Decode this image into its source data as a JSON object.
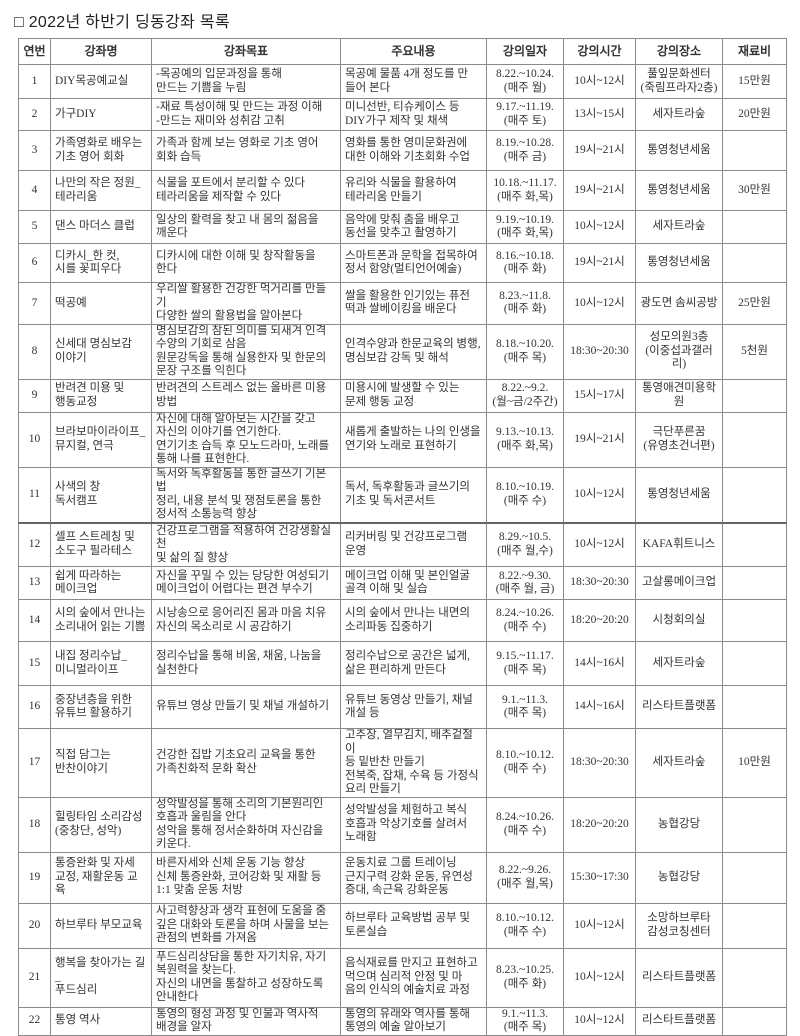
{
  "title": "□ 2022년 하반기 딩동강좌 목록",
  "headers": [
    "연번",
    "강좌명",
    "강좌목표",
    "주요내용",
    "강의일자",
    "강의시간",
    "강의장소",
    "재료비"
  ],
  "rows": [
    {
      "no": "1",
      "name": "DIY목공예교실",
      "goal": "-목공예의 입문과정을 통해\n 만드는 기쁨을 누림",
      "content": "목공예 물품 4개 정도를 만\n들어 본다",
      "date": "8.22.~10.24.\n(매주 월)",
      "time": "10시~12시",
      "place": "풀잎문화센터\n(죽림프라자2층)",
      "fee": "15만원"
    },
    {
      "no": "2",
      "name": "가구DIY",
      "goal": "-재료 특성이해 및 만드는 과정 이해\n-만드는 재미와 성취감 고취",
      "content": "미니선반, 티슈케이스 등\nDIY가구 제작 및 채색",
      "date": "9.17.~11.19.\n(매주 토)",
      "time": "13시~15시",
      "place": "세자트라숲",
      "fee": "20만원"
    },
    {
      "no": "3",
      "name": "가족영화로 배우는\n기초 영어 회화",
      "goal": "가족과 함께 보는 영화로 기초 영어\n회화 습득",
      "content": "영화를 통한 영미문화권에\n대한 이해와 기초회화 수업",
      "date": "8.19.~10.28.\n(매주 금)",
      "time": "19시~21시",
      "place": "통영청년세움",
      "fee": ""
    },
    {
      "no": "4",
      "name": "나만의 작은 정원_\n테라리움",
      "goal": "식물을 포트에서 분리할 수 있다\n테라리움을 제작할 수 있다",
      "content": "유리와 식물을 활용하여\n테라리움 만들기",
      "date": "10.18.~11.17.\n(매주 화,목)",
      "time": "19시~21시",
      "place": "통영청년세움",
      "fee": "30만원"
    },
    {
      "no": "5",
      "name": "댄스 마더스 클럽",
      "goal": "일상의 활력을 찾고 내 몸의 젊음을\n깨운다",
      "content": "음악에 맞춰 춤을 배우고\n동선을 맞추고 촬영하기",
      "date": "9.19.~10.19.\n(매주 화,목)",
      "time": "10시~12시",
      "place": "세자트라숲",
      "fee": ""
    },
    {
      "no": "6",
      "name": "디카시_한 컷,\n시를 꽃피우다",
      "goal": "디카시에 대한 이해 및 창작활동을\n한다",
      "content": "스마트폰과 문학을 접목하여\n정서 함양(멀티언어예술)",
      "date": "8.16.~10.18.\n(매주 화)",
      "time": "19시~21시",
      "place": "통영청년세움",
      "fee": ""
    },
    {
      "no": "7",
      "name": "떡공예",
      "goal": "우리쌀 활용한 건강한 먹거리를 만들기\n다양한 쌀의 활용법을 알아본다",
      "content": "쌀을 활용한 인기있는 퓨전\n떡과 쌀베이킹을 배운다",
      "date": "8.23.~11.8.\n(매주 화)",
      "time": "10시~12시",
      "place": "광도면 솜씨공방",
      "fee": "25만원"
    },
    {
      "no": "8",
      "name": "신세대 명심보감\n이야기",
      "goal": "명심보감의 참된 의미를 되새겨 인격\n수양의 기회로 삼음\n원문강독을 통해 실용한자 및 한문의\n문장 구조를 익힌다",
      "content": "인격수양과 한문교육의 병행,\n명심보감 강독 및 해석",
      "date": "8.18.~10.20.\n(매주 목)",
      "time": "18:30~20:30",
      "place": "성모의원3층\n(이중섭과갤러리)",
      "fee": "5천원"
    },
    {
      "no": "9",
      "name": "반려견 미용 및\n행동교정",
      "goal": "반려견의 스트레스 없는 올바른 미용\n방법",
      "content": "미용시에 발생할 수 있는\n문제 행동 교정",
      "date": "8.22.~9.2.\n(월~금/2주간)",
      "time": "15시~17시",
      "place": "통영애견미용학원",
      "fee": ""
    },
    {
      "no": "10",
      "name": "브라보마이라이프_\n뮤지컬, 연극",
      "goal": "자신에 대해 알아보는 시간을 갖고\n자신의 이야기를 연기한다.\n연기기초 습득 후 모노드라마, 노래를\n통해 나를 표현한다.",
      "content": "새롭게 출발하는 나의 인생을\n연기와 노래로 표현하기",
      "date": "9.13.~10.13.\n(매주 화,목)",
      "time": "19시~21시",
      "place": "극단푸른꿈\n(유영초건너편)",
      "fee": ""
    },
    {
      "no": "11",
      "name": "사색의 창\n독서캠프",
      "goal": "독서와 독후활동을 통한 글쓰기 기본법\n정리, 내용 분석 및 쟁점토론을 통한\n정서적 소통능력 향상",
      "content": "독서, 독후활동과 글쓰기의\n기초 및 독서콘서트",
      "date": "8.10.~10.19.\n(매주 수)",
      "time": "10시~12시",
      "place": "통영청년세움",
      "fee": ""
    },
    {
      "no": "12",
      "name": "셀프 스트레칭 및\n소도구 필라테스",
      "goal": "건강프로그램을 적용하여 건강생활실천\n및 삶의 질 향상",
      "content": "리커버링 및 건강프로그램\n운영",
      "date": "8.29.~10.5.\n(매주 월,수)",
      "time": "10시~12시",
      "place": "KAFA휘트니스",
      "fee": ""
    },
    {
      "no": "13",
      "name": "쉽게 따라하는\n메이크업",
      "goal": "자신을 꾸밀 수 있는 당당한 여성되기\n메이크업이 어렵다는 편견 부수기",
      "content": "메이크업 이해 및 본인얼굴\n골격 이해 및 실습",
      "date": "8.22.~9.30.\n(매주 월, 금)",
      "time": "18:30~20:30",
      "place": "고살롱메이크업",
      "fee": ""
    },
    {
      "no": "14",
      "name": "시의 숲에서 만나는\n소리내어 읽는 기쁨",
      "goal": "시낭송으로 응어리진 몸과 마음 치유\n자신의 목소리로 시 공감하기",
      "content": "시의 숲에서 만나는 내면의\n소리파동 집중하기",
      "date": "8.24.~10.26.\n(매주 수)",
      "time": "18:20~20:20",
      "place": "시청회의실",
      "fee": ""
    },
    {
      "no": "15",
      "name": "내집 정리수납_\n미니멀라이프",
      "goal": "정리수납을 통해 비움, 채움, 나눔을\n실천한다",
      "content": "정리수납으로 공간은 넓게,\n삶은 편리하게 만든다",
      "date": "9.15.~11.17.\n(매주 목)",
      "time": "14시~16시",
      "place": "세자트라숲",
      "fee": ""
    },
    {
      "no": "16",
      "name": "중장년층을 위한\n유튜브 활용하기",
      "goal": "유튜브 영상 만들기 및 채널 개설하기",
      "content": "유튜브 동영상 만들기, 채널\n개설 등",
      "date": "9.1.~11.3.\n(매주 목)",
      "time": "14시~16시",
      "place": "리스타트플랫폼",
      "fee": ""
    },
    {
      "no": "17",
      "name": "직접 담그는\n반찬이야기",
      "goal": "건강한 집밥 기초요리 교육을 통한\n가족친화적 문화 확산",
      "content": "고추장, 열무김치, 배추겉절이\n등 밑반찬 만들기\n전복죽, 잡채, 수육 등 가정식\n요리 만들기",
      "date": "8.10.~10.12.\n(매주 수)",
      "time": "18:30~20:30",
      "place": "세자트라숲",
      "fee": "10만원"
    },
    {
      "no": "18",
      "name": "힐링타임 소리감성\n(중창단, 성악)",
      "goal": "성악발성을 통해 소리의 기본원리인\n호흡과 울림을 안다\n성악을 통해 정서순화하며 자신감을\n키운다.",
      "content": "성악발성을 체험하고 복식\n호흡과 악상기호를 살려서\n노래함",
      "date": "8.24.~10.26.\n(매주 수)",
      "time": "18:20~20:20",
      "place": "농협강당",
      "fee": ""
    },
    {
      "no": "19",
      "name": "통증완화 및 자세\n교정, 재활운동 교육",
      "goal": "바른자세와 신체 운동 기능 향상\n신체 통증완화, 코어강화 및 재활 등\n1:1 맞춤 운동 처방",
      "content": "운동치료 그룹 트레이닝\n근지구력 강화 운동, 유연성\n증대, 속근육 강화운동",
      "date": "8.22.~9.26.\n(매주 월,목)",
      "time": "15:30~17:30",
      "place": "농협강당",
      "fee": ""
    },
    {
      "no": "20",
      "name": "하브루타 부모교육",
      "goal": "사고력향상과 생각 표현에 도움을 줌\n깊은 대화와 토론을 하며 사물을 보는\n관점의 변화를 가져옴",
      "content": "하브루타 교육방법 공부 및\n토론실습",
      "date": "8.10.~10.12.\n(매주 수)",
      "time": "10시~12시",
      "place": "소망하브루타\n감성코칭센터",
      "fee": ""
    },
    {
      "no": "21",
      "name": "행복을 찾아가는 길_\n푸드심리",
      "goal": "푸드심리상담을 통한 자기치유, 자기\n복원력을 찾는다.\n자신의 내면을 통찰하고 성장하도록\n안내한다",
      "content": "음식재료를 만지고 표현하고\n먹으며 심리적 안정 및 마\n음의 인식의 예술치료 과정",
      "date": "8.23.~10.25.\n(매주 화)",
      "time": "10시~12시",
      "place": "리스타트플랫폼",
      "fee": ""
    },
    {
      "no": "22",
      "name": "통영 역사",
      "goal": "통영의 형성 과정 및 인물과 역사적\n배경을 알자",
      "content": "통영의 유래와 역사를 통해\n통영의 예술 알아보기",
      "date": "9.1.~11.3.\n(매주 목)",
      "time": "10시~12시",
      "place": "리스타트플랫폼",
      "fee": ""
    }
  ]
}
